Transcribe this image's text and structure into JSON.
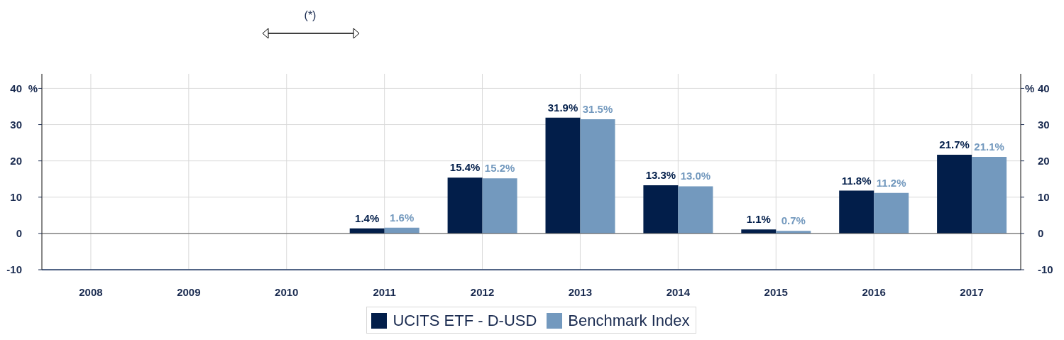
{
  "chart_data": {
    "type": "bar",
    "categories": [
      "2008",
      "2009",
      "2010",
      "2011",
      "2012",
      "2013",
      "2014",
      "2015",
      "2016",
      "2017"
    ],
    "series": [
      {
        "name": "UCITS ETF - D-USD",
        "color": "#021e4a",
        "values": [
          null,
          null,
          null,
          1.4,
          15.4,
          31.9,
          13.3,
          1.1,
          11.8,
          21.7
        ],
        "value_labels": [
          null,
          null,
          null,
          "1.4%",
          "15.4%",
          "31.9%",
          "13.3%",
          "1.1%",
          "11.8%",
          "21.7%"
        ]
      },
      {
        "name": "Benchmark Index",
        "color": "#7399be",
        "values": [
          null,
          null,
          null,
          1.6,
          15.2,
          31.5,
          13.0,
          0.7,
          11.2,
          21.1
        ],
        "value_labels": [
          null,
          null,
          null,
          "1.6%",
          "15.2%",
          "31.5%",
          "13.0%",
          "0.7%",
          "11.2%",
          "21.1%"
        ]
      }
    ],
    "ylim": [
      -10,
      44
    ],
    "yticks": [
      -10,
      0,
      10,
      20,
      30,
      40
    ],
    "y2lim": [
      -10,
      44
    ],
    "y2ticks": [
      -10,
      0,
      10,
      20,
      30,
      40
    ],
    "ylabel": "%",
    "y2label": "%",
    "grid": true,
    "legend": "bottom",
    "ref_lines": [
      {
        "axis": "y",
        "value": 0,
        "color": "#555555"
      }
    ],
    "annotations": [
      "(*)"
    ]
  }
}
